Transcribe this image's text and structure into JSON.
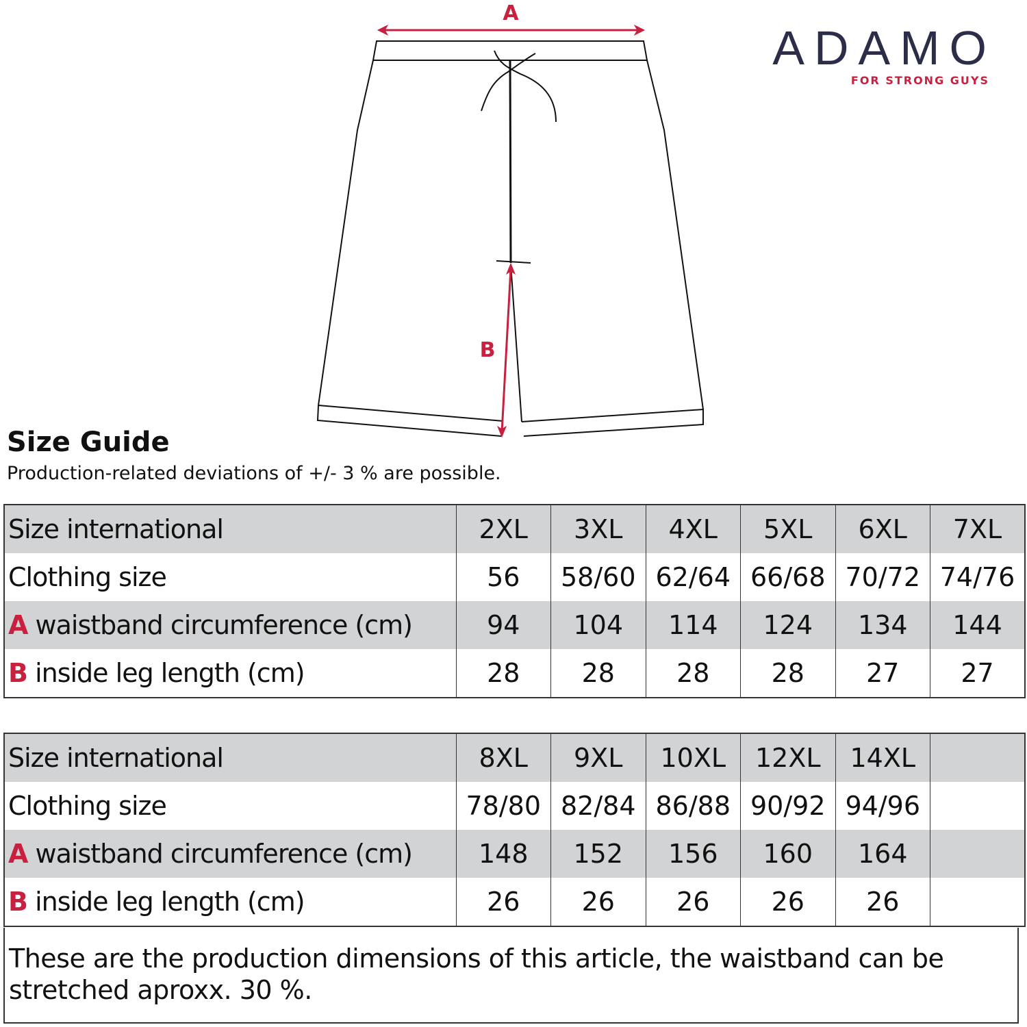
{
  "brand": {
    "name": "ADAMO",
    "tagline": "FOR STRONG GUYS",
    "navy": "#2b2d49",
    "red": "#c8203f"
  },
  "diagram": {
    "label_a": "A",
    "label_b": "B"
  },
  "title": "Size Guide",
  "subtitle": "Production-related deviations of +/- 3 % are possible.",
  "row_labels": {
    "size_international": "Size international",
    "clothing_size": "Clothing size",
    "a_letter": "A",
    "a_text": "waistband circumference (cm)",
    "b_letter": "B",
    "b_text": "inside leg length (cm)"
  },
  "tables": [
    {
      "sizes": [
        "2XL",
        "3XL",
        "4XL",
        "5XL",
        "6XL",
        "7XL"
      ],
      "clothing": [
        "56",
        "58/60",
        "62/64",
        "66/68",
        "70/72",
        "74/76"
      ],
      "waistband": [
        "94",
        "104",
        "114",
        "124",
        "134",
        "144"
      ],
      "inside_leg": [
        "28",
        "28",
        "28",
        "28",
        "27",
        "27"
      ]
    },
    {
      "sizes": [
        "8XL",
        "9XL",
        "10XL",
        "12XL",
        "14XL",
        ""
      ],
      "clothing": [
        "78/80",
        "82/84",
        "86/88",
        "90/92",
        "94/96",
        ""
      ],
      "waistband": [
        "148",
        "152",
        "156",
        "160",
        "164",
        ""
      ],
      "inside_leg": [
        "26",
        "26",
        "26",
        "26",
        "26",
        ""
      ]
    }
  ],
  "note": "These are the production dimensions of this article, the waistband can be stretched aproxx. 30 %."
}
